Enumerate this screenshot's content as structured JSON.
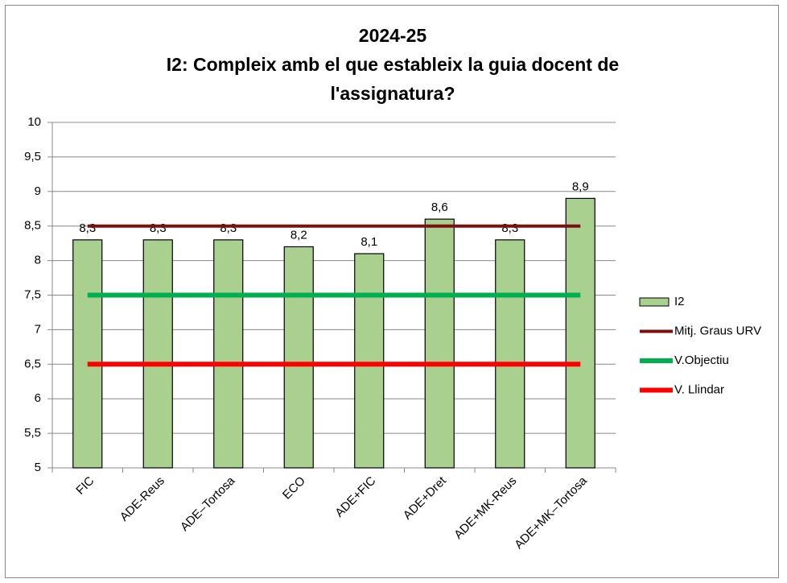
{
  "chart_data": {
    "type": "bar",
    "title": "2024-25",
    "subtitle": "I2: Compleix amb el que estableix la guia docent de l'assignatura?",
    "categories": [
      "FIC",
      "ADE-Reus",
      "ADE–Tortosa",
      "ECO",
      "ADE+FIC",
      "ADE+Dret",
      "ADE+MK-Reus",
      "ADE+MK–Tortosa"
    ],
    "series": [
      {
        "name": "I2",
        "type": "bar",
        "color": "#a9d08e",
        "values": [
          8.3,
          8.3,
          8.3,
          8.2,
          8.1,
          8.6,
          8.3,
          8.9
        ],
        "value_labels": [
          "8,3",
          "8,3",
          "8,3",
          "8,2",
          "8,1",
          "8,6",
          "8,3",
          "8,9"
        ]
      },
      {
        "name": "Mitj. Graus URV",
        "type": "line",
        "color": "#7b1010",
        "values": [
          8.5,
          8.5,
          8.5,
          8.5,
          8.5,
          8.5,
          8.5,
          8.5
        ]
      },
      {
        "name": "V.Objectiu",
        "type": "line",
        "color": "#00b050",
        "values": [
          7.5,
          7.5,
          7.5,
          7.5,
          7.5,
          7.5,
          7.5,
          7.5
        ]
      },
      {
        "name": "V. Llindar",
        "type": "line",
        "color": "#ff0000",
        "values": [
          6.5,
          6.5,
          6.5,
          6.5,
          6.5,
          6.5,
          6.5,
          6.5
        ]
      }
    ],
    "ylim": [
      5,
      10
    ],
    "yticks": [
      5,
      {
        "value": 5.5,
        "label": "5,5"
      },
      6,
      {
        "value": 6.5,
        "label": "6,5"
      },
      7,
      {
        "value": 7.5,
        "label": "7,5"
      },
      8,
      {
        "value": 8.5,
        "label": "8,5"
      },
      9,
      {
        "value": 9.5,
        "label": "9,5"
      },
      10
    ],
    "grid": true,
    "legend": "right"
  }
}
